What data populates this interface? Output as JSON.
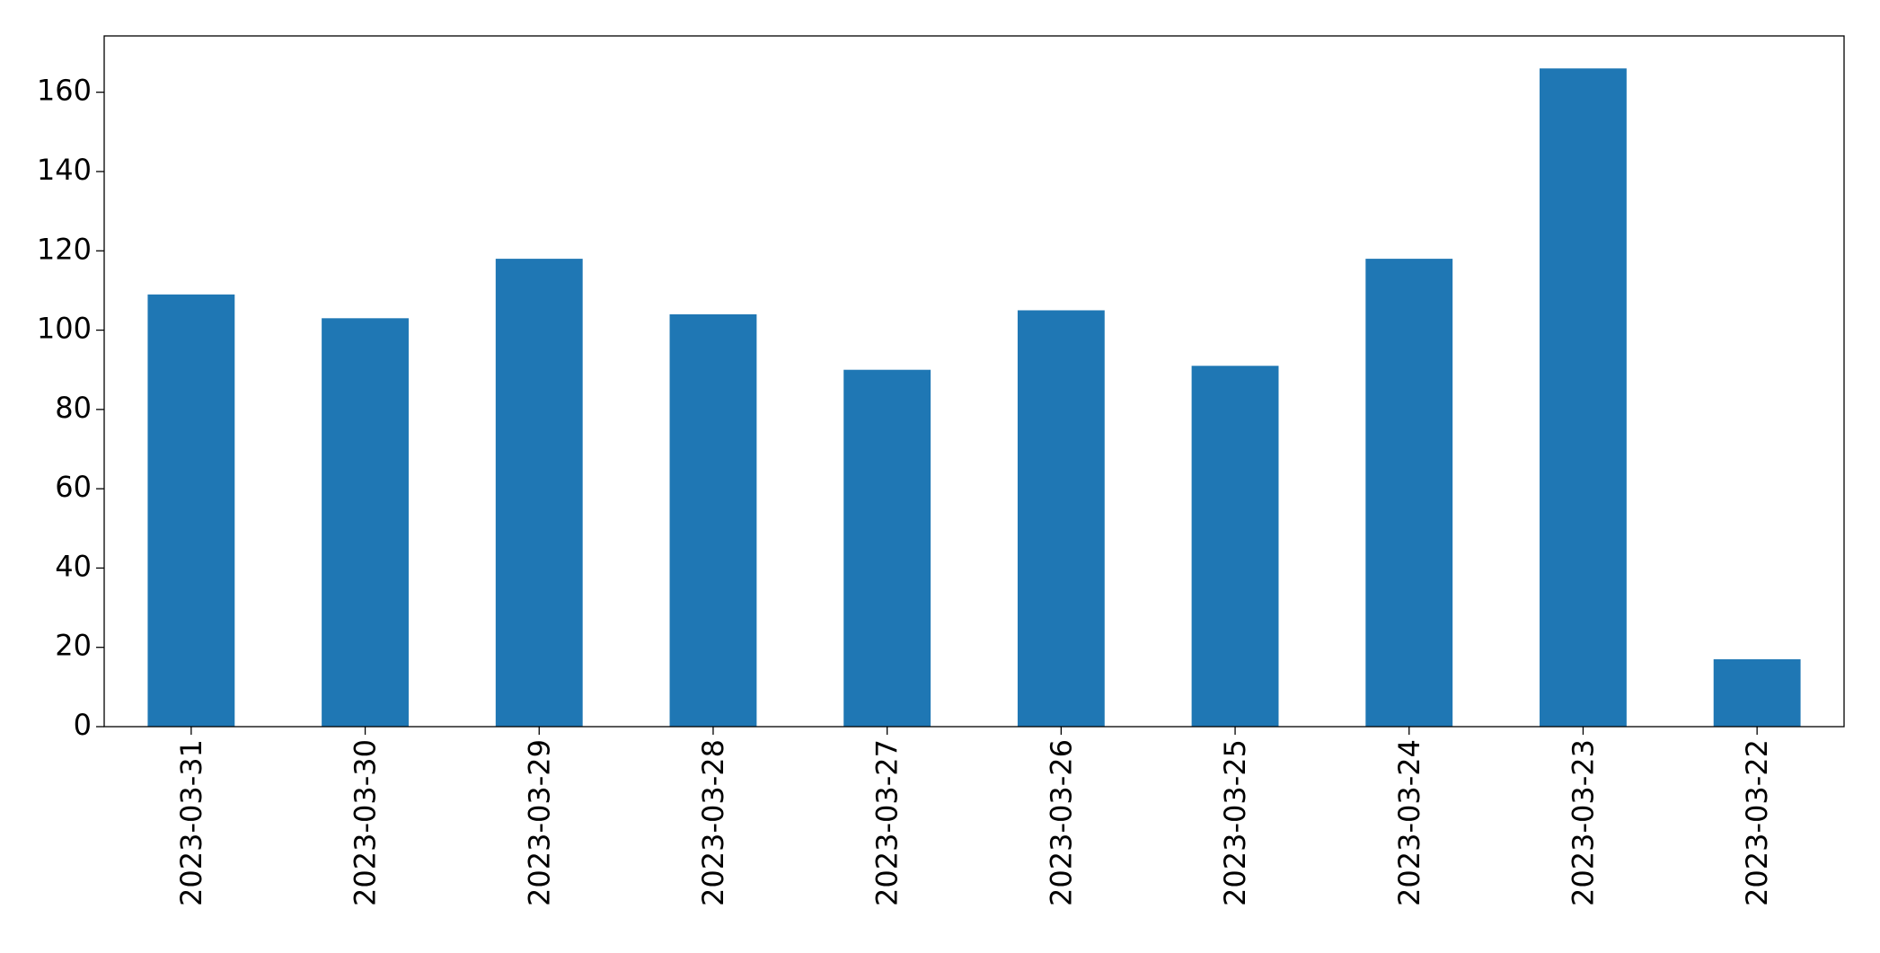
{
  "chart_data": {
    "type": "bar",
    "categories": [
      "2023-03-31",
      "2023-03-30",
      "2023-03-29",
      "2023-03-28",
      "2023-03-27",
      "2023-03-26",
      "2023-03-25",
      "2023-03-24",
      "2023-03-23",
      "2023-03-22"
    ],
    "values": [
      109,
      103,
      118,
      104,
      90,
      105,
      91,
      118,
      166,
      17
    ],
    "color": "#1f77b4",
    "ylim": [
      0,
      174.2
    ],
    "yticks": [
      0,
      20,
      40,
      60,
      80,
      100,
      120,
      140,
      160
    ],
    "grid": false
  }
}
